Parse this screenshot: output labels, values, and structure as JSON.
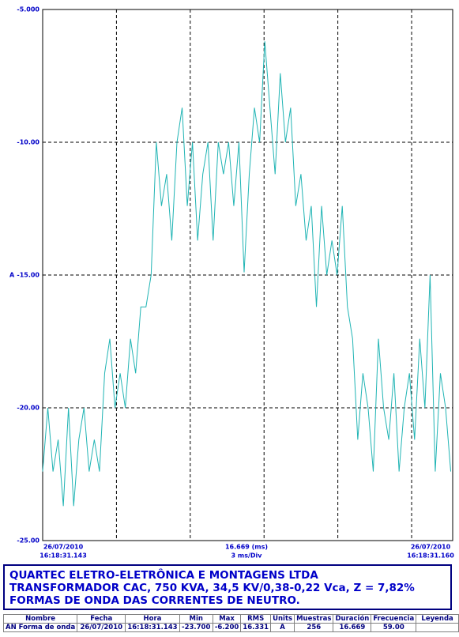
{
  "chart_data": {
    "type": "line",
    "y_unit": "A",
    "bottom_left": [
      "26/07/2010",
      "16:18:31.143"
    ],
    "bottom_center": [
      "16.669 (ms)",
      "3 ms/Div"
    ],
    "bottom_right": [
      "26/07/2010",
      "16:18:31.160"
    ],
    "xlim": [
      0,
      16.669
    ],
    "xticks": [
      3,
      6,
      9,
      12,
      15
    ],
    "ylim": [
      -25,
      -5
    ],
    "yticks": [
      {
        "value": -5,
        "label": "-5.000"
      },
      {
        "value": -10,
        "label": "-10.00"
      },
      {
        "value": -15,
        "label": "-15.00"
      },
      {
        "value": -20,
        "label": "-20.00"
      },
      {
        "value": -25,
        "label": "-25.00"
      }
    ],
    "grid": true,
    "x": [
      0,
      0.21,
      0.42,
      0.63,
      0.84,
      1.05,
      1.26,
      1.47,
      1.68,
      1.89,
      2.1,
      2.31,
      2.52,
      2.73,
      2.94,
      3.15,
      3.36,
      3.57,
      3.78,
      3.99,
      4.2,
      4.41,
      4.62,
      4.83,
      5.04,
      5.25,
      5.46,
      5.67,
      5.88,
      6.09,
      6.3,
      6.51,
      6.72,
      6.93,
      7.14,
      7.35,
      7.56,
      7.77,
      7.98,
      8.19,
      8.4,
      8.61,
      8.82,
      9.03,
      9.24,
      9.45,
      9.66,
      9.87,
      10.08,
      10.29,
      10.5,
      10.71,
      10.92,
      11.13,
      11.34,
      11.55,
      11.76,
      11.97,
      12.18,
      12.39,
      12.6,
      12.81,
      13.02,
      13.23,
      13.44,
      13.65,
      13.86,
      14.07,
      14.28,
      14.49,
      14.7,
      14.91,
      15.12,
      15.33,
      15.54,
      15.75,
      15.96,
      16.17,
      16.38,
      16.59
    ],
    "series": [
      {
        "name": "AN Forma de onda",
        "color": "#20b4b4",
        "values": [
          -22.4,
          -20,
          -22.4,
          -21.2,
          -23.7,
          -20,
          -23.7,
          -21.2,
          -20,
          -22.4,
          -21.2,
          -22.4,
          -18.7,
          -17.4,
          -20,
          -18.7,
          -20,
          -17.4,
          -18.7,
          -16.2,
          -16.2,
          -15,
          -10,
          -12.4,
          -11.2,
          -13.7,
          -10,
          -8.7,
          -12.4,
          -10,
          -13.7,
          -11.2,
          -10,
          -13.7,
          -10,
          -11.2,
          -10,
          -12.4,
          -10,
          -14.9,
          -11.2,
          -8.7,
          -10,
          -6.2,
          -8.7,
          -11.2,
          -7.4,
          -10,
          -8.7,
          -12.4,
          -11.2,
          -13.7,
          -12.4,
          -16.2,
          -12.4,
          -15,
          -13.7,
          -15,
          -12.4,
          -16.2,
          -17.4,
          -21.2,
          -18.7,
          -20,
          -22.4,
          -17.4,
          -20,
          -21.2,
          -18.7,
          -22.4,
          -20,
          -18.7,
          -21.2,
          -17.4,
          -20,
          -15,
          -22.4,
          -18.7,
          -20,
          -22.4
        ]
      }
    ]
  },
  "info": {
    "lines": [
      "QUARTEC ELETRO-ELETRÔNICA E MONTAGENS LTDA",
      "TRANSFORMADOR CAC, 750 KVA, 34,5 KV/0,38-0,22 Vca, Z = 7,82%",
      "FORMAS DE ONDA DAS CORRENTES DE NEUTRO."
    ]
  },
  "table": {
    "header": [
      "Nombre",
      "Fecha",
      "Hora",
      "Min",
      "Max",
      "RMS",
      "Units",
      "Muestras",
      "Duración",
      "Frecuencia",
      "Leyenda"
    ],
    "rows": [
      [
        "AN Forma de onda",
        "26/07/2010",
        "16:18:31.143",
        "-23.700",
        "-6.200",
        "16.331",
        "A",
        "256",
        "16.669",
        "59.00"
      ]
    ]
  }
}
